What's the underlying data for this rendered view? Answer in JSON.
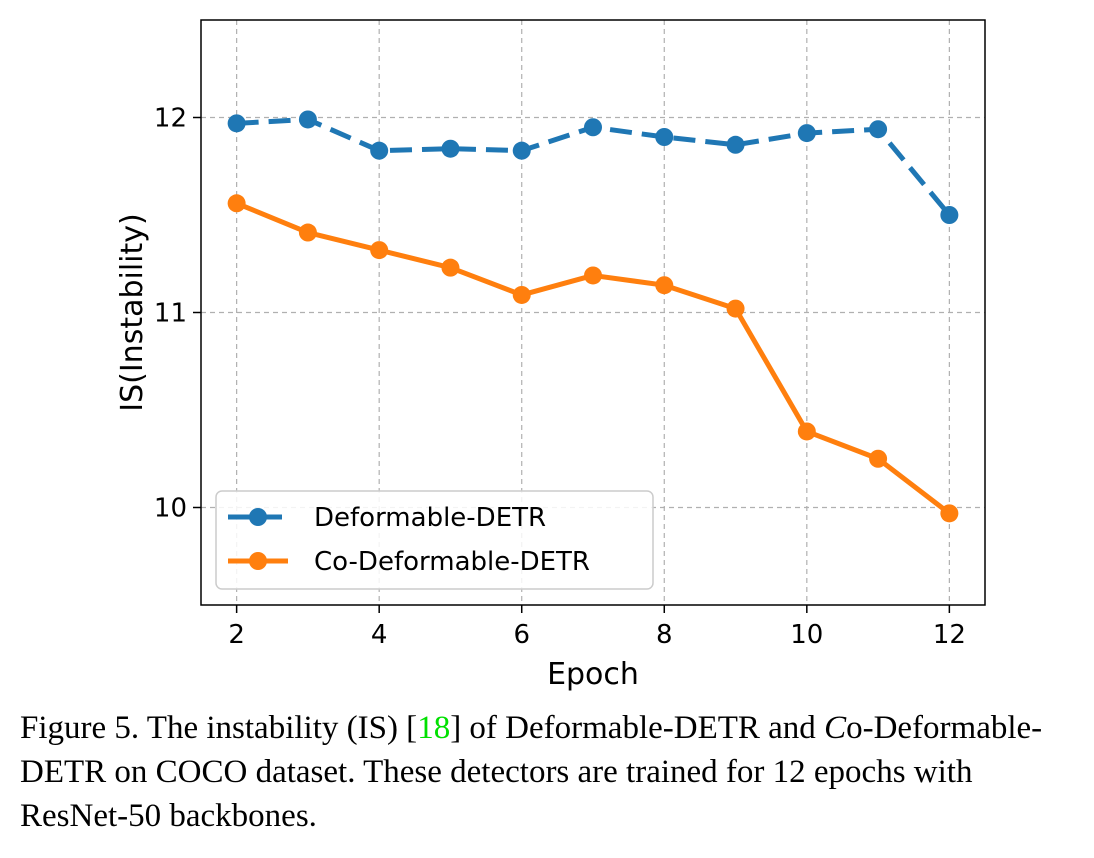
{
  "chart_data": {
    "type": "line",
    "xlabel": "Epoch",
    "ylabel": "IS(Instability)",
    "xlim": [
      1.5,
      12.5
    ],
    "ylim": [
      9.5,
      12.5
    ],
    "xticks": [
      2,
      4,
      6,
      8,
      10,
      12
    ],
    "yticks": [
      10,
      11,
      12
    ],
    "grid": true,
    "legend_position": "lower-left",
    "x": [
      2,
      3,
      4,
      5,
      6,
      7,
      8,
      9,
      10,
      11,
      12
    ],
    "series": [
      {
        "name": "Deformable-DETR",
        "color": "#1f77b4",
        "linestyle": "dashed",
        "marker": "circle",
        "values": [
          11.97,
          11.99,
          11.83,
          11.84,
          11.83,
          11.95,
          11.9,
          11.86,
          11.92,
          11.94,
          11.5
        ]
      },
      {
        "name": "Co-Deformable-DETR",
        "color": "#ff7f0e",
        "linestyle": "solid",
        "marker": "circle",
        "values": [
          11.56,
          11.41,
          11.32,
          11.23,
          11.09,
          11.19,
          11.14,
          11.02,
          10.39,
          10.25,
          9.97
        ]
      }
    ]
  },
  "caption": {
    "prefix": "Figure 5.  The instability (IS) [",
    "citation": "18",
    "mid": "] of Deformable-DETR and ",
    "co_letter": "C",
    "suffix": "o-Deformable-DETR on COCO dataset. These detectors are trained for 12 epochs with ResNet-50 backbones."
  }
}
